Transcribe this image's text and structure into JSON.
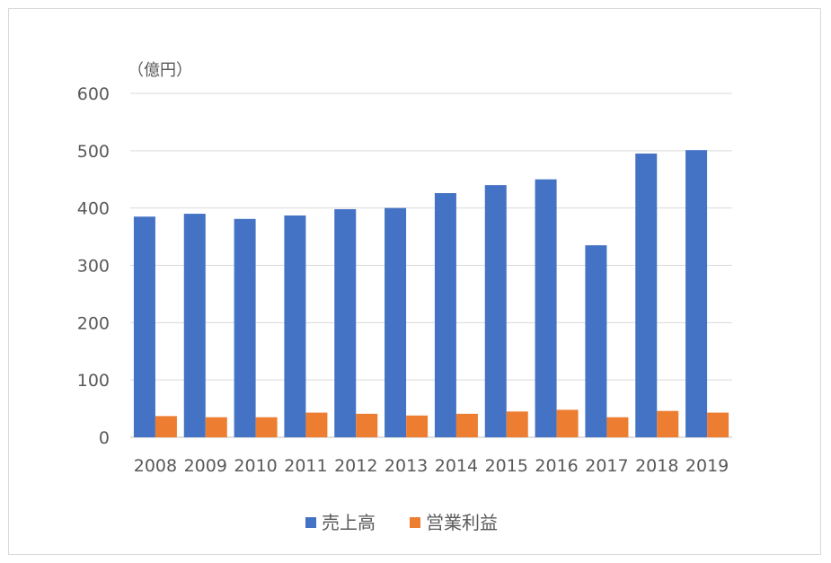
{
  "chart_data": {
    "type": "bar",
    "unit_label": "（億円）",
    "categories": [
      "2008",
      "2009",
      "2010",
      "2011",
      "2012",
      "2013",
      "2014",
      "2015",
      "2016",
      "2017",
      "2018",
      "2019"
    ],
    "series": [
      {
        "name": "売上高",
        "color": "#4472c4",
        "values": [
          385,
          390,
          381,
          387,
          398,
          400,
          426,
          440,
          450,
          335,
          495,
          501
        ]
      },
      {
        "name": "営業利益",
        "color": "#ed7d31",
        "values": [
          37,
          35,
          35,
          43,
          41,
          38,
          41,
          45,
          48,
          35,
          46,
          43
        ]
      }
    ],
    "ylim": [
      0,
      600
    ],
    "yticks": [
      0,
      100,
      200,
      300,
      400,
      500,
      600
    ],
    "grid": true,
    "legend_position": "bottom"
  }
}
